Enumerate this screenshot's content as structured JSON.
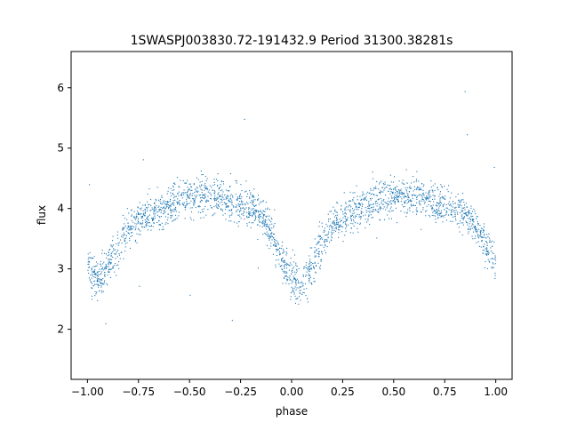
{
  "chart_data": {
    "type": "scatter",
    "title": "1SWASPJ003830.72-191432.9 Period 31300.38281s",
    "xlabel": "phase",
    "ylabel": "flux",
    "xlim": [
      -1.08,
      1.08
    ],
    "ylim": [
      1.17,
      6.6
    ],
    "xticks": [
      -1.0,
      -0.75,
      -0.5,
      -0.25,
      0.0,
      0.25,
      0.5,
      0.75,
      1.0
    ],
    "xtick_labels": [
      "−1.00",
      "−0.75",
      "−0.50",
      "−0.25",
      "0.00",
      "0.25",
      "0.50",
      "0.75",
      "1.00"
    ],
    "yticks": [
      2,
      3,
      4,
      5,
      6
    ],
    "ytick_labels": [
      "2",
      "3",
      "4",
      "5",
      "6"
    ],
    "grid": false,
    "legend": "none",
    "marker_color": "#1f77b4",
    "series": [
      {
        "description": "phase-folded flux, mirrored over two cycles; dense cloud following this profile",
        "profile": {
          "x": [
            -1.0,
            -0.95,
            -0.9,
            -0.85,
            -0.8,
            -0.7,
            -0.6,
            -0.5,
            -0.45,
            -0.4,
            -0.3,
            -0.2,
            -0.15,
            -0.1,
            -0.05,
            0.0,
            0.05,
            0.1,
            0.15,
            0.2,
            0.3,
            0.4,
            0.5,
            0.55,
            0.6,
            0.7,
            0.8,
            0.85,
            0.9,
            0.95,
            1.0
          ],
          "y": [
            3.05,
            2.82,
            3.05,
            3.35,
            3.65,
            3.9,
            4.05,
            4.18,
            4.2,
            4.2,
            4.15,
            4.0,
            3.88,
            3.6,
            3.15,
            2.82,
            2.75,
            3.05,
            3.45,
            3.75,
            3.95,
            4.1,
            4.2,
            4.22,
            4.2,
            4.12,
            4.02,
            3.9,
            3.72,
            3.4,
            3.05
          ]
        },
        "scatter_width": 0.22
      }
    ]
  }
}
